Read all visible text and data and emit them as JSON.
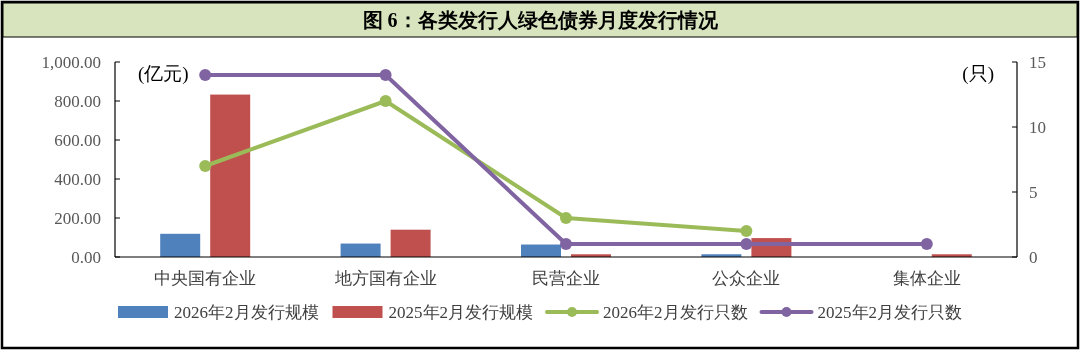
{
  "chart_data": {
    "type": "bar",
    "title": "图 6：各类发行人绿色债券月度发行情况",
    "categories": [
      "中央国有企业",
      "地方国有企业",
      "民营企业",
      "公众企业",
      "集体企业"
    ],
    "ylabel": "(亿元)",
    "y2label": "(只)",
    "series": [
      {
        "name": "2026年2月发行规模",
        "color": "#4f81bd",
        "values": [
          119,
          69,
          64,
          14,
          null
        ]
      },
      {
        "name": "2025年2月发行规模",
        "color": "#c0504d",
        "values": [
          833,
          140,
          14,
          97,
          14
        ]
      },
      {
        "name": "2026年2月发行只数",
        "type": "line",
        "axis": "y2",
        "color": "#9bbb59",
        "values": [
          7,
          12,
          3,
          2,
          null
        ]
      },
      {
        "name": "2025年2月发行只数",
        "type": "line",
        "axis": "y2",
        "color": "#8064a2",
        "values": [
          14,
          14,
          1,
          1,
          1
        ]
      }
    ],
    "ylim": [
      0,
      1000
    ],
    "yticks": [
      {
        "value": 0,
        "label": "0.00"
      },
      {
        "value": 200,
        "label": "200.00"
      },
      {
        "value": 400,
        "label": "400.00"
      },
      {
        "value": 600,
        "label": "600.00"
      },
      {
        "value": 800,
        "label": "800.00"
      },
      {
        "value": 1000,
        "label": "1,000.00"
      }
    ],
    "y2lim": [
      0,
      15
    ],
    "y2ticks": [
      0,
      5,
      10,
      15
    ],
    "marker": "circle",
    "line_style": "solid",
    "legend": "bottom",
    "grid": false
  }
}
